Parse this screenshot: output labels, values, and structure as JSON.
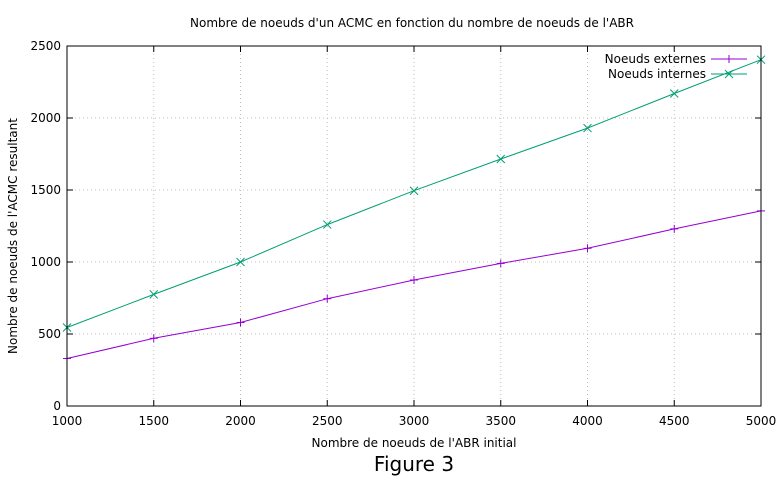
{
  "caption": "Figure 3",
  "chart_data": {
    "type": "line",
    "title": "Nombre de noeuds d'un ACMC en fonction du nombre de noeuds de l'ABR",
    "xlabel": "Nombre de noeuds de l'ABR initial",
    "ylabel": "Nombre de noeuds de l'ACMC resultant",
    "xlim": [
      1000,
      5000
    ],
    "ylim": [
      0,
      2500
    ],
    "xticks": [
      "1000",
      "1500",
      "2000",
      "2500",
      "3000",
      "3500",
      "4000",
      "4500",
      "5000"
    ],
    "yticks": [
      "0",
      "500",
      "1000",
      "1500",
      "2000",
      "2500"
    ],
    "grid": true,
    "legend_position": "top-right",
    "x": [
      1000,
      1500,
      2000,
      2500,
      3000,
      3500,
      4000,
      4500,
      5000
    ],
    "series": [
      {
        "name": "Noeuds externes",
        "marker": "plus",
        "color": "#9400d3",
        "values": [
          330,
          470,
          580,
          745,
          875,
          990,
          1095,
          1230,
          1355
        ]
      },
      {
        "name": "Noeuds internes",
        "marker": "cross",
        "color": "#009e73",
        "values": [
          545,
          775,
          1000,
          1260,
          1495,
          1715,
          1930,
          2170,
          2405
        ]
      }
    ]
  }
}
